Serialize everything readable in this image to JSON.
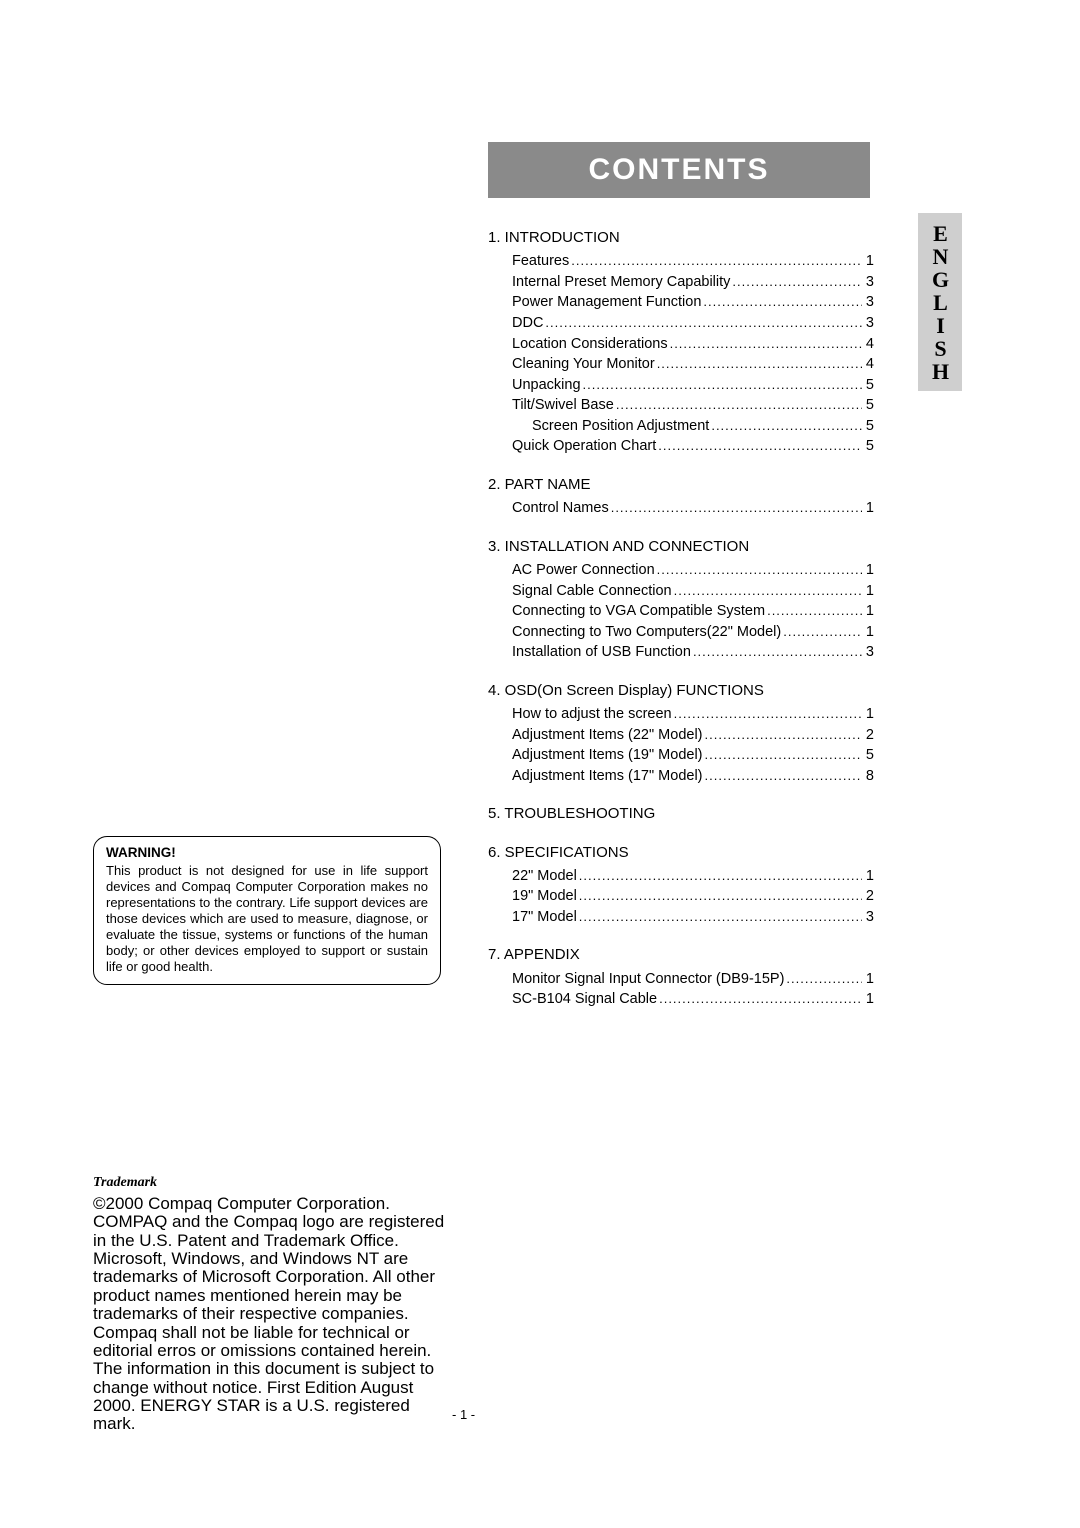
{
  "banner": {
    "title": "CONTENTS",
    "bg": "#8a8a8a",
    "fg": "#ffffff"
  },
  "language_tab": {
    "label": "ENGLISH",
    "bg": "#cfcfcf"
  },
  "warning": {
    "title": "WARNING!",
    "body": "This product is not designed for use in life support devices and Compaq Computer Corporation makes no representations to the contrary.  Life support devices are those devices which are used to measure, diagnose, or evaluate the tissue, systems or functions of the human body; or other devices employed to support or sustain life or good health."
  },
  "trademark": {
    "title": "Trademark",
    "body": "©2000 Compaq Computer Corporation. COMPAQ and the Compaq logo are registered in the U.S. Patent and Trademark Office. Microsoft, Windows, and Windows NT are trademarks of Microsoft Corporation. All other product names mentioned herein may be trademarks of their respective companies. Compaq shall not be liable for technical or editorial erros or omissions contained herein. The information in this document is subject to change without notice. First Edition August 2000. ENERGY STAR is a U.S. registered mark."
  },
  "page_number": "- 1 -",
  "toc": [
    {
      "num": "1.",
      "title": "INTRODUCTION",
      "items": [
        {
          "label": "Features",
          "page": "1"
        },
        {
          "label": "Internal Preset Memory Capability",
          "page": "3"
        },
        {
          "label": "Power Management Function",
          "page": "3"
        },
        {
          "label": "DDC",
          "page": "3"
        },
        {
          "label": "Location Considerations",
          "page": "4"
        },
        {
          "label": "Cleaning Your Monitor",
          "page": "4"
        },
        {
          "label": "Unpacking",
          "page": "5"
        },
        {
          "label": "Tilt/Swivel Base",
          "page": "5"
        },
        {
          "label": "Screen Position Adjustment",
          "page": "5",
          "indent": true
        },
        {
          "label": "Quick Operation Chart",
          "page": "5"
        }
      ]
    },
    {
      "num": "2.",
      "title": "PART NAME",
      "items": [
        {
          "label": "Control Names",
          "page": "1"
        }
      ]
    },
    {
      "num": "3.",
      "title": "INSTALLATION AND CONNECTION",
      "items": [
        {
          "label": "AC Power Connection",
          "page": "1"
        },
        {
          "label": "Signal Cable Connection",
          "page": "1"
        },
        {
          "label": "Connecting to VGA Compatible System",
          "page": "1"
        },
        {
          "label": "Connecting to Two Computers(22\" Model)",
          "page": "1"
        },
        {
          "label": "Installation of USB Function",
          "page": "3"
        }
      ]
    },
    {
      "num": "4.",
      "title": "OSD(On Screen Display) FUNCTIONS",
      "items": [
        {
          "label": "How to adjust the screen",
          "page": "1"
        },
        {
          "label": "Adjustment Items (22\" Model)",
          "page": "2"
        },
        {
          "label": "Adjustment Items (19\" Model)",
          "page": "5"
        },
        {
          "label": "Adjustment Items (17\" Model)",
          "page": "8"
        }
      ]
    },
    {
      "num": "5.",
      "title": "TROUBLESHOOTING",
      "items": []
    },
    {
      "num": "6.",
      "title": "SPECIFICATIONS",
      "items": [
        {
          "label": "22\" Model",
          "page": "1"
        },
        {
          "label": "19\" Model",
          "page": "2"
        },
        {
          "label": "17\" Model",
          "page": "3"
        }
      ]
    },
    {
      "num": "7.",
      "title": "APPENDIX",
      "items": [
        {
          "label": "Monitor Signal Input Connector (DB9-15P)",
          "page": "1"
        },
        {
          "label": "SC-B104 Signal Cable",
          "page": "1"
        }
      ]
    }
  ]
}
